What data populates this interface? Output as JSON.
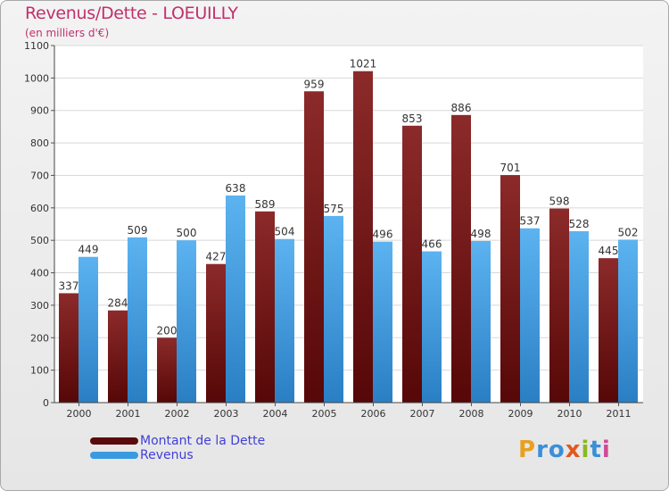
{
  "header": {
    "title": "Revenus/Dette - LOEUILLY",
    "subtitle": "(en milliers d'€)"
  },
  "chart_data": {
    "type": "bar",
    "categories": [
      "2000",
      "2001",
      "2002",
      "2003",
      "2004",
      "2005",
      "2006",
      "2007",
      "2008",
      "2009",
      "2010",
      "2011"
    ],
    "series": [
      {
        "name": "Montant de la Dette",
        "values": [
          337,
          284,
          200,
          427,
          589,
          959,
          1021,
          853,
          886,
          701,
          598,
          445
        ],
        "color": "#7a1f1f"
      },
      {
        "name": "Revenus",
        "values": [
          449,
          509,
          500,
          638,
          504,
          575,
          496,
          466,
          498,
          537,
          528,
          502
        ],
        "color": "#4aa6e8"
      }
    ],
    "ylim": [
      0,
      1100
    ],
    "yticks": [
      0,
      100,
      200,
      300,
      400,
      500,
      600,
      700,
      800,
      900,
      1000,
      1100
    ],
    "grid": true,
    "legend_position": "bottom-left"
  },
  "legend": {
    "items": [
      {
        "label": "Montant de la Dette",
        "color": "#5a0a0a"
      },
      {
        "label": "Revenus",
        "color": "#3a9ae0"
      }
    ]
  },
  "logo": {
    "letters": [
      "P",
      "r",
      "o",
      "x",
      "i",
      "t",
      "i"
    ],
    "colors": [
      "#e8a020",
      "#3a8fd8",
      "#3a8fd8",
      "#e05a20",
      "#8ab820",
      "#3a8fd8",
      "#d04a9a"
    ]
  }
}
